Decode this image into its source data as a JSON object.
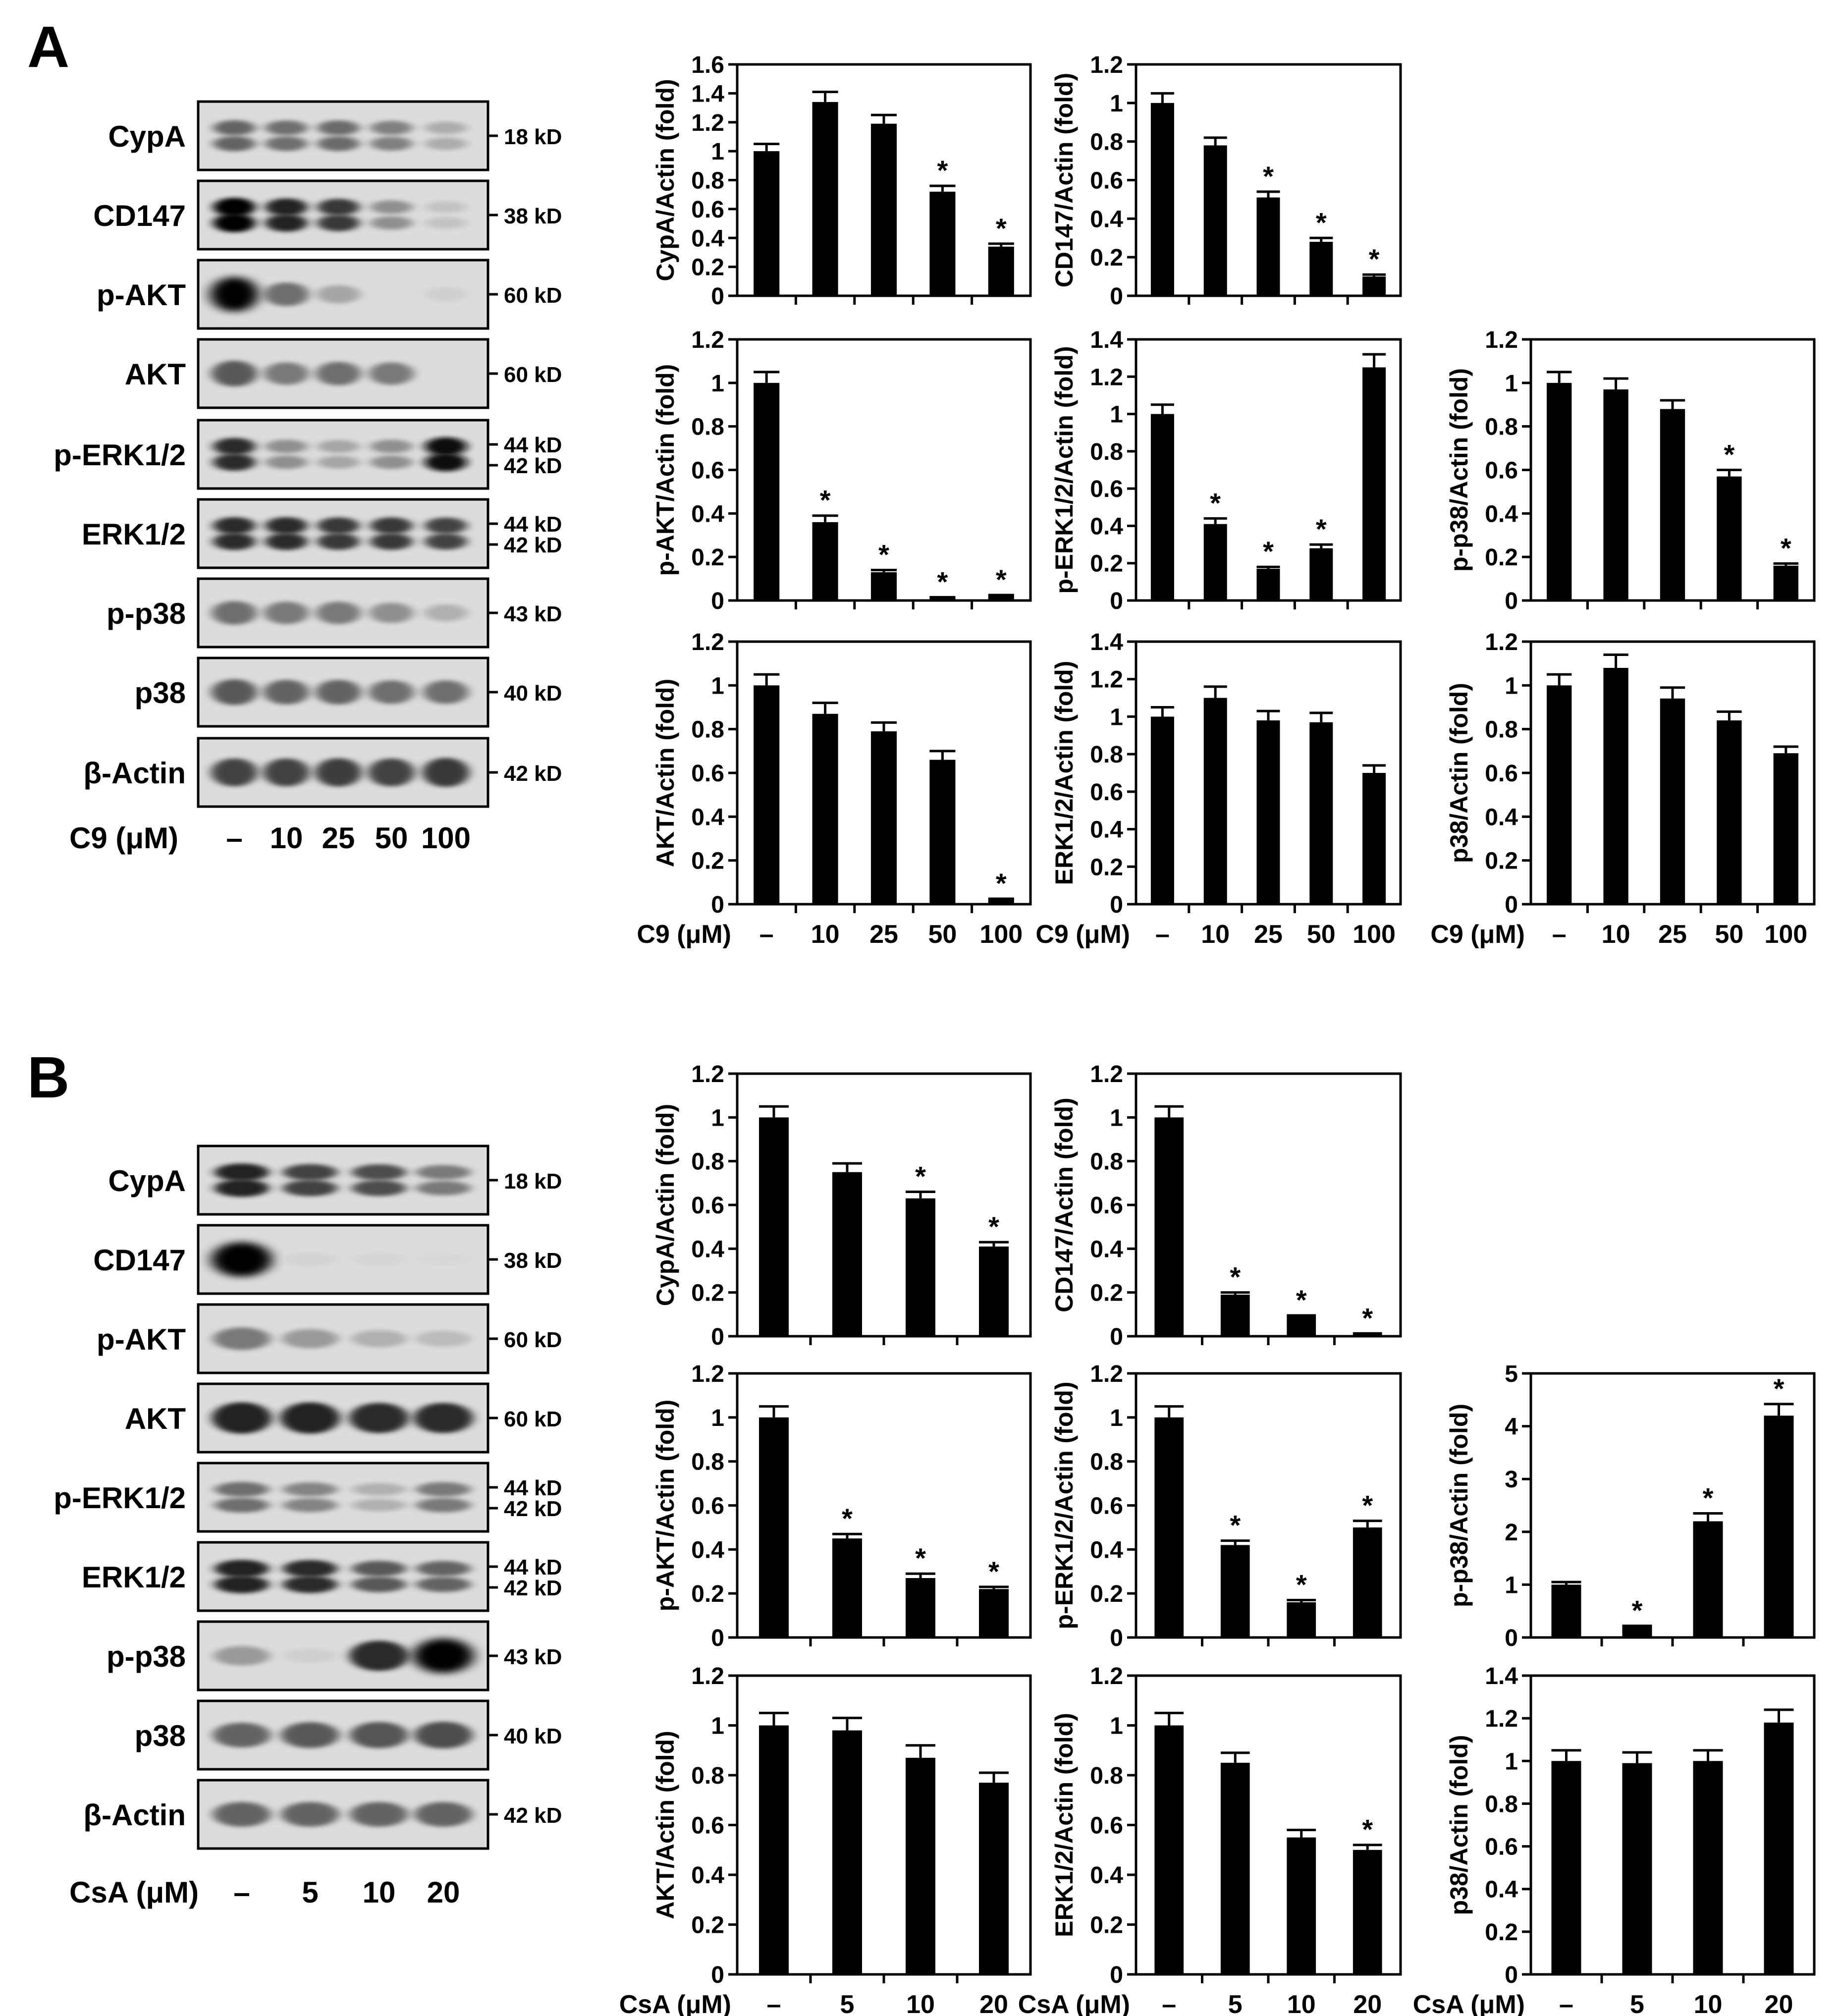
{
  "panels": [
    {
      "letter": "A",
      "blot": {
        "rows": [
          {
            "label": "CypA",
            "size": [
              "18 kD"
            ],
            "bands": [
              0.55,
              0.5,
              0.52,
              0.42,
              0.22
            ],
            "doublet": true
          },
          {
            "label": "CD147",
            "size": [
              "38 kD"
            ],
            "bands": [
              1.0,
              0.85,
              0.75,
              0.35,
              0.12
            ],
            "doublet": true
          },
          {
            "label": "p-AKT",
            "size": [
              "60 kD"
            ],
            "bands": [
              1.0,
              0.5,
              0.25,
              0.0,
              0.06
            ],
            "doublet": false
          },
          {
            "label": "AKT",
            "size": [
              "60 kD"
            ],
            "bands": [
              0.6,
              0.45,
              0.5,
              0.45,
              0.0
            ],
            "doublet": false
          },
          {
            "label": "p-ERK1/2",
            "size": [
              "44 kD",
              "42 kD"
            ],
            "bands": [
              0.8,
              0.35,
              0.25,
              0.35,
              0.95
            ],
            "doublet": true
          },
          {
            "label": "ERK1/2",
            "size": [
              "44 kD",
              "42 kD"
            ],
            "bands": [
              0.8,
              0.8,
              0.75,
              0.75,
              0.7
            ],
            "doublet": true
          },
          {
            "label": "p-p38",
            "size": [
              "43 kD"
            ],
            "bands": [
              0.5,
              0.45,
              0.45,
              0.35,
              0.2
            ],
            "doublet": false
          },
          {
            "label": "p38",
            "size": [
              "40 kD"
            ],
            "bands": [
              0.6,
              0.55,
              0.55,
              0.5,
              0.5
            ],
            "doublet": false
          },
          {
            "label": "β-Actin",
            "size": [
              "42 kD"
            ],
            "bands": [
              0.7,
              0.7,
              0.72,
              0.7,
              0.75
            ],
            "doublet": false
          }
        ],
        "treatment_label": "C9 (μM)",
        "lanes": [
          "–",
          "10",
          "25",
          "50",
          "100"
        ]
      },
      "x_label": "C9 (μM)",
      "categories": [
        "–",
        "10",
        "25",
        "50",
        "100"
      ]
    },
    {
      "letter": "B",
      "blot": {
        "rows": [
          {
            "label": "CypA",
            "size": [
              "18 kD"
            ],
            "bands": [
              0.85,
              0.7,
              0.65,
              0.45
            ],
            "doublet": true
          },
          {
            "label": "CD147",
            "size": [
              "38 kD"
            ],
            "bands": [
              1.0,
              0.04,
              0.03,
              0.02
            ],
            "doublet": false
          },
          {
            "label": "p-AKT",
            "size": [
              "60 kD"
            ],
            "bands": [
              0.45,
              0.3,
              0.2,
              0.15
            ],
            "doublet": false
          },
          {
            "label": "AKT",
            "size": [
              "60 kD"
            ],
            "bands": [
              0.85,
              0.85,
              0.8,
              0.8
            ],
            "doublet": false
          },
          {
            "label": "p-ERK1/2",
            "size": [
              "44 kD",
              "42 kD"
            ],
            "bands": [
              0.5,
              0.4,
              0.2,
              0.45
            ],
            "doublet": true
          },
          {
            "label": "ERK1/2",
            "size": [
              "44 kD",
              "42 kD"
            ],
            "bands": [
              0.85,
              0.8,
              0.6,
              0.55
            ],
            "doublet": true
          },
          {
            "label": "p-p38",
            "size": [
              "43 kD"
            ],
            "bands": [
              0.3,
              0.06,
              0.8,
              1.0
            ],
            "doublet": false
          },
          {
            "label": "p38",
            "size": [
              "40 kD"
            ],
            "bands": [
              0.55,
              0.6,
              0.62,
              0.65
            ],
            "doublet": false
          },
          {
            "label": "β-Actin",
            "size": [
              "42 kD"
            ],
            "bands": [
              0.55,
              0.55,
              0.55,
              0.55
            ],
            "doublet": false
          }
        ],
        "treatment_label": "CsA (μM)",
        "lanes": [
          "–",
          "5",
          "10",
          "20"
        ]
      },
      "x_label": "CsA (μM)",
      "categories": [
        "–",
        "5",
        "10",
        "20"
      ]
    }
  ],
  "chart_data": [
    {
      "type": "bar",
      "panel": "A",
      "ylabel": "CypA/Actin (fold)",
      "categories": [
        "–",
        "10",
        "25",
        "50",
        "100"
      ],
      "values": [
        1.0,
        1.34,
        1.19,
        0.72,
        0.34
      ],
      "errors": [
        0.05,
        0.07,
        0.06,
        0.04,
        0.02
      ],
      "significant": [
        false,
        false,
        false,
        true,
        true
      ],
      "ylim": [
        0,
        1.6
      ],
      "yticks": [
        "0",
        "0.2",
        "0.4",
        "0.6",
        "0.8",
        "1",
        "1.2",
        "1.4",
        "1.6"
      ]
    },
    {
      "type": "bar",
      "panel": "A",
      "ylabel": "CD147/Actin (fold)",
      "categories": [
        "–",
        "10",
        "25",
        "50",
        "100"
      ],
      "values": [
        1.0,
        0.78,
        0.51,
        0.28,
        0.1
      ],
      "errors": [
        0.05,
        0.04,
        0.03,
        0.02,
        0.01
      ],
      "significant": [
        false,
        false,
        true,
        true,
        true
      ],
      "ylim": [
        0,
        1.2
      ],
      "yticks": [
        "0",
        "0.2",
        "0.4",
        "0.6",
        "0.8",
        "1",
        "1.2"
      ]
    },
    {
      "type": "bar",
      "panel": "A",
      "ylabel": "p-AKT/Actin (fold)",
      "categories": [
        "–",
        "10",
        "25",
        "50",
        "100"
      ],
      "values": [
        1.0,
        0.36,
        0.13,
        0.01,
        0.02
      ],
      "errors": [
        0.05,
        0.03,
        0.01,
        0.005,
        0.005
      ],
      "significant": [
        false,
        true,
        true,
        true,
        true
      ],
      "ylim": [
        0,
        1.2
      ],
      "yticks": [
        "0",
        "0.2",
        "0.4",
        "0.6",
        "0.8",
        "1",
        "1.2"
      ]
    },
    {
      "type": "bar",
      "panel": "A",
      "ylabel": "p-ERK1/2/Actin (fold)",
      "categories": [
        "–",
        "10",
        "25",
        "50",
        "100"
      ],
      "values": [
        1.0,
        0.41,
        0.17,
        0.28,
        1.25
      ],
      "errors": [
        0.05,
        0.03,
        0.01,
        0.02,
        0.07
      ],
      "significant": [
        false,
        true,
        true,
        true,
        false
      ],
      "ylim": [
        0,
        1.4
      ],
      "yticks": [
        "0",
        "0.2",
        "0.4",
        "0.6",
        "0.8",
        "1",
        "1.2",
        "1.4"
      ]
    },
    {
      "type": "bar",
      "panel": "A",
      "ylabel": "p-p38/Actin (fold)",
      "categories": [
        "–",
        "10",
        "25",
        "50",
        "100"
      ],
      "values": [
        1.0,
        0.97,
        0.88,
        0.57,
        0.16
      ],
      "errors": [
        0.05,
        0.05,
        0.04,
        0.03,
        0.01
      ],
      "significant": [
        false,
        false,
        false,
        true,
        true
      ],
      "ylim": [
        0,
        1.2
      ],
      "yticks": [
        "0",
        "0.2",
        "0.4",
        "0.6",
        "0.8",
        "1",
        "1.2"
      ]
    },
    {
      "type": "bar",
      "panel": "A",
      "ylabel": "AKT/Actin (fold)",
      "categories": [
        "–",
        "10",
        "25",
        "50",
        "100"
      ],
      "values": [
        1.0,
        0.87,
        0.79,
        0.66,
        0.02
      ],
      "errors": [
        0.05,
        0.05,
        0.04,
        0.04,
        0.005
      ],
      "significant": [
        false,
        false,
        false,
        false,
        true
      ],
      "ylim": [
        0,
        1.2
      ],
      "yticks": [
        "0",
        "0.2",
        "0.4",
        "0.6",
        "0.8",
        "1",
        "1.2"
      ]
    },
    {
      "type": "bar",
      "panel": "A",
      "ylabel": "ERK1/2/Actin (fold)",
      "categories": [
        "–",
        "10",
        "25",
        "50",
        "100"
      ],
      "values": [
        1.0,
        1.1,
        0.98,
        0.97,
        0.7
      ],
      "errors": [
        0.05,
        0.06,
        0.05,
        0.05,
        0.04
      ],
      "significant": [
        false,
        false,
        false,
        false,
        false
      ],
      "ylim": [
        0,
        1.4
      ],
      "yticks": [
        "0",
        "0.2",
        "0.4",
        "0.6",
        "0.8",
        "1",
        "1.2",
        "1.4"
      ]
    },
    {
      "type": "bar",
      "panel": "A",
      "ylabel": "p38/Actin (fold)",
      "categories": [
        "–",
        "10",
        "25",
        "50",
        "100"
      ],
      "values": [
        1.0,
        1.08,
        0.94,
        0.84,
        0.69
      ],
      "errors": [
        0.05,
        0.06,
        0.05,
        0.04,
        0.03
      ],
      "significant": [
        false,
        false,
        false,
        false,
        false
      ],
      "ylim": [
        0,
        1.2
      ],
      "yticks": [
        "0",
        "0.2",
        "0.4",
        "0.6",
        "0.8",
        "1",
        "1.2"
      ]
    },
    {
      "type": "bar",
      "panel": "B",
      "ylabel": "CypA/Actin (fold)",
      "categories": [
        "–",
        "5",
        "10",
        "20"
      ],
      "values": [
        1.0,
        0.75,
        0.63,
        0.41
      ],
      "errors": [
        0.05,
        0.04,
        0.03,
        0.02
      ],
      "significant": [
        false,
        false,
        true,
        true
      ],
      "ylim": [
        0,
        1.2
      ],
      "yticks": [
        "0",
        "0.2",
        "0.4",
        "0.6",
        "0.8",
        "1",
        "1.2"
      ]
    },
    {
      "type": "bar",
      "panel": "B",
      "ylabel": "CD147/Actin (fold)",
      "categories": [
        "–",
        "5",
        "10",
        "20"
      ],
      "values": [
        1.0,
        0.19,
        0.09,
        0.01
      ],
      "errors": [
        0.05,
        0.01,
        0.005,
        0.003
      ],
      "significant": [
        false,
        true,
        true,
        true
      ],
      "ylim": [
        0,
        1.2
      ],
      "yticks": [
        "0",
        "0.2",
        "0.4",
        "0.6",
        "0.8",
        "1",
        "1.2"
      ]
    },
    {
      "type": "bar",
      "panel": "B",
      "ylabel": "p-AKT/Actin (fold)",
      "categories": [
        "–",
        "5",
        "10",
        "20"
      ],
      "values": [
        1.0,
        0.45,
        0.27,
        0.22
      ],
      "errors": [
        0.05,
        0.02,
        0.02,
        0.01
      ],
      "significant": [
        false,
        true,
        true,
        true
      ],
      "ylim": [
        0,
        1.2
      ],
      "yticks": [
        "0",
        "0.2",
        "0.4",
        "0.6",
        "0.8",
        "1",
        "1.2"
      ]
    },
    {
      "type": "bar",
      "panel": "B",
      "ylabel": "p-ERK1/2/Actin (fold)",
      "categories": [
        "–",
        "5",
        "10",
        "20"
      ],
      "values": [
        1.0,
        0.42,
        0.16,
        0.5
      ],
      "errors": [
        0.05,
        0.02,
        0.01,
        0.03
      ],
      "significant": [
        false,
        true,
        true,
        true
      ],
      "ylim": [
        0,
        1.2
      ],
      "yticks": [
        "0",
        "0.2",
        "0.4",
        "0.6",
        "0.8",
        "1",
        "1.2"
      ]
    },
    {
      "type": "bar",
      "panel": "B",
      "ylabel": "p-p38/Actin (fold)",
      "categories": [
        "–",
        "5",
        "10",
        "20"
      ],
      "values": [
        1.0,
        0.2,
        2.2,
        4.2
      ],
      "errors": [
        0.05,
        0.02,
        0.15,
        0.22
      ],
      "significant": [
        false,
        true,
        true,
        true
      ],
      "ylim": [
        0,
        5
      ],
      "yticks": [
        "0",
        "1",
        "2",
        "3",
        "4",
        "5"
      ]
    },
    {
      "type": "bar",
      "panel": "B",
      "ylabel": "AKT/Actin (fold)",
      "categories": [
        "–",
        "5",
        "10",
        "20"
      ],
      "values": [
        1.0,
        0.98,
        0.87,
        0.77
      ],
      "errors": [
        0.05,
        0.05,
        0.05,
        0.04
      ],
      "significant": [
        false,
        false,
        false,
        false
      ],
      "ylim": [
        0,
        1.2
      ],
      "yticks": [
        "0",
        "0.2",
        "0.4",
        "0.6",
        "0.8",
        "1",
        "1.2"
      ]
    },
    {
      "type": "bar",
      "panel": "B",
      "ylabel": "ERK1/2/Actin (fold)",
      "categories": [
        "–",
        "5",
        "10",
        "20"
      ],
      "values": [
        1.0,
        0.85,
        0.55,
        0.5
      ],
      "errors": [
        0.05,
        0.04,
        0.03,
        0.02
      ],
      "significant": [
        false,
        false,
        false,
        true
      ],
      "ylim": [
        0,
        1.2
      ],
      "yticks": [
        "0",
        "0.2",
        "0.4",
        "0.6",
        "0.8",
        "1",
        "1.2"
      ]
    },
    {
      "type": "bar",
      "panel": "B",
      "ylabel": "p38/Actin (fold)",
      "categories": [
        "–",
        "5",
        "10",
        "20"
      ],
      "values": [
        1.0,
        0.99,
        1.0,
        1.18
      ],
      "errors": [
        0.05,
        0.05,
        0.05,
        0.06
      ],
      "significant": [
        false,
        false,
        false,
        false
      ],
      "ylim": [
        0,
        1.4
      ],
      "yticks": [
        "0",
        "0.2",
        "0.4",
        "0.6",
        "0.8",
        "1",
        "1.2",
        "1.4"
      ]
    }
  ],
  "significance_marker": "*"
}
